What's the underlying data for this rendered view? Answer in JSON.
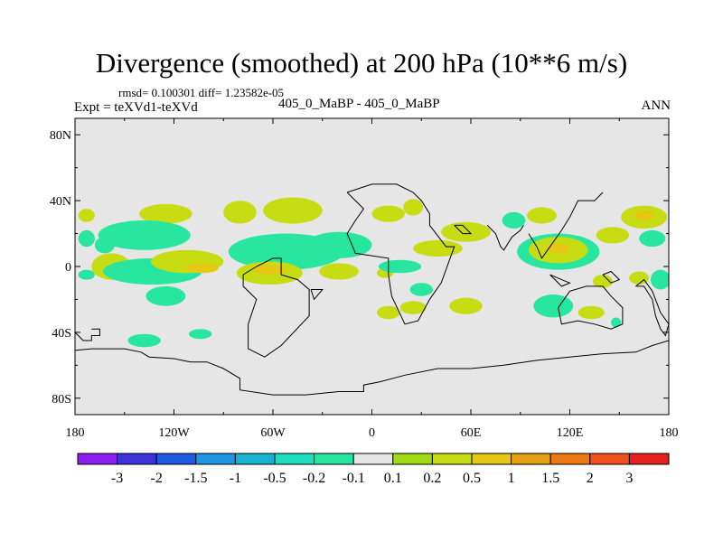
{
  "title": "Divergence (smoothed) at 200 hPa (10**6 m/s)",
  "stats": "rmsd= 0.100301 diff= 1.23582e-05",
  "expt": "Expt = teXVd1-teXVd",
  "cases": "405_0_MaBP - 405_0_MaBP",
  "season": "ANN",
  "colors": {
    "background": "#e6e6e6",
    "level_colors": [
      "#8c1ef0",
      "#3c32dc",
      "#1e5ae6",
      "#1e96e6",
      "#14b4d2",
      "#1edcbe",
      "#28e6a0",
      "#e6e6e6",
      "#a0dc14",
      "#c8dc14",
      "#e6c814",
      "#e6a014",
      "#f07814",
      "#f0501e",
      "#e61e1e"
    ]
  },
  "chart_data": {
    "type": "contour-map",
    "title": "Divergence (smoothed) at 200 hPa (10**6 m/s)",
    "units": "10**6 m/s",
    "xlim": [
      -180,
      180
    ],
    "ylim": [
      -90,
      90
    ],
    "x_ticks": [
      {
        "value": -180,
        "label": "180"
      },
      {
        "value": -120,
        "label": "120W"
      },
      {
        "value": -60,
        "label": "60W"
      },
      {
        "value": 0,
        "label": "0"
      },
      {
        "value": 60,
        "label": "60E"
      },
      {
        "value": 120,
        "label": "120E"
      },
      {
        "value": 180,
        "label": "180"
      }
    ],
    "y_ticks": [
      {
        "value": 80,
        "label": "80N"
      },
      {
        "value": 40,
        "label": "40N"
      },
      {
        "value": 0,
        "label": "0"
      },
      {
        "value": -40,
        "label": "40S"
      },
      {
        "value": -80,
        "label": "80S"
      }
    ],
    "contour_levels": [
      "-3",
      "-2",
      "-1.5",
      "-1",
      "-0.5",
      "-0.2",
      "-0.1",
      "0.1",
      "0.2",
      "0.5",
      "1",
      "1.5",
      "2",
      "3"
    ],
    "regions": [
      {
        "level": 0.2,
        "lon": -173,
        "lat": 31,
        "rlon": 5,
        "rlat": 4
      },
      {
        "level": -0.2,
        "lon": -173,
        "lat": 17,
        "rlon": 5,
        "rlat": 5
      },
      {
        "level": -0.2,
        "lon": -173,
        "lat": -5,
        "rlon": 5,
        "rlat": 3
      },
      {
        "level": -0.2,
        "lon": -162,
        "lat": 13,
        "rlon": 6,
        "rlat": 5
      },
      {
        "level": 0.2,
        "lon": -125,
        "lat": 32,
        "rlon": 16,
        "rlat": 6
      },
      {
        "level": -0.2,
        "lon": -138,
        "lat": 19,
        "rlon": 28,
        "rlat": 9
      },
      {
        "level": 0.2,
        "lon": -158,
        "lat": 0,
        "rlon": 12,
        "rlat": 8
      },
      {
        "level": -0.2,
        "lon": -133,
        "lat": -3,
        "rlon": 30,
        "rlat": 8
      },
      {
        "level": 0.2,
        "lon": -112,
        "lat": 3,
        "rlon": 22,
        "rlat": 7
      },
      {
        "level": 0.5,
        "lon": -103,
        "lat": -1,
        "rlon": 10,
        "rlat": 3
      },
      {
        "level": 0.2,
        "lon": -80,
        "lat": 33,
        "rlon": 10,
        "rlat": 7
      },
      {
        "level": -0.2,
        "lon": -104,
        "lat": -41,
        "rlon": 7,
        "rlat": 3
      },
      {
        "level": -0.2,
        "lon": -138,
        "lat": -45,
        "rlon": 10,
        "rlat": 4
      },
      {
        "level": -0.2,
        "lon": -125,
        "lat": -18,
        "rlon": 12,
        "rlat": 6
      },
      {
        "level": 0.2,
        "lon": -48,
        "lat": 34,
        "rlon": 18,
        "rlat": 8
      },
      {
        "level": -0.2,
        "lon": -52,
        "lat": 9,
        "rlon": 35,
        "rlat": 11
      },
      {
        "level": -0.2,
        "lon": -20,
        "lat": 13,
        "rlon": 20,
        "rlat": 8
      },
      {
        "level": 0.2,
        "lon": -62,
        "lat": -4,
        "rlon": 20,
        "rlat": 7
      },
      {
        "level": 0.5,
        "lon": -62,
        "lat": -2,
        "rlon": 10,
        "rlat": 3
      },
      {
        "level": 0.2,
        "lon": -20,
        "lat": -3,
        "rlon": 12,
        "rlat": 5
      },
      {
        "level": 0.2,
        "lon": 8,
        "lat": -4,
        "rlon": 5,
        "rlat": 3
      },
      {
        "level": 0.2,
        "lon": 10,
        "lat": 32,
        "rlon": 10,
        "rlat": 5
      },
      {
        "level": 0.2,
        "lon": 25,
        "lat": 36,
        "rlon": 6,
        "rlat": 5
      },
      {
        "level": -0.2,
        "lon": 17,
        "lat": 0,
        "rlon": 13,
        "rlat": 4
      },
      {
        "level": 0.2,
        "lon": 10,
        "lat": -28,
        "rlon": 7,
        "rlat": 4
      },
      {
        "level": 0.2,
        "lon": 25,
        "lat": -25,
        "rlon": 8,
        "rlat": 4
      },
      {
        "level": -0.2,
        "lon": 30,
        "lat": -14,
        "rlon": 7,
        "rlat": 4
      },
      {
        "level": 0.2,
        "lon": 40,
        "lat": 11,
        "rlon": 15,
        "rlat": 5
      },
      {
        "level": 0.2,
        "lon": 57,
        "lat": 21,
        "rlon": 15,
        "rlat": 6
      },
      {
        "level": 0.2,
        "lon": 57,
        "lat": -24,
        "rlon": 10,
        "rlat": 5
      },
      {
        "level": -0.2,
        "lon": 86,
        "lat": 28,
        "rlon": 7,
        "rlat": 5
      },
      {
        "level": 0.2,
        "lon": 103,
        "lat": 31,
        "rlon": 9,
        "rlat": 5
      },
      {
        "level": -0.2,
        "lon": 113,
        "lat": 9,
        "rlon": 25,
        "rlat": 11
      },
      {
        "level": 0.2,
        "lon": 113,
        "lat": 10,
        "rlon": 18,
        "rlat": 8
      },
      {
        "level": 0.5,
        "lon": 113,
        "lat": 11,
        "rlon": 7,
        "rlat": 3
      },
      {
        "level": 0.2,
        "lon": 146,
        "lat": 19,
        "rlon": 10,
        "rlat": 5
      },
      {
        "level": 0.2,
        "lon": 165,
        "lat": 30,
        "rlon": 14,
        "rlat": 7
      },
      {
        "level": 0.5,
        "lon": 165,
        "lat": 31,
        "rlon": 6,
        "rlat": 3
      },
      {
        "level": -0.2,
        "lon": 170,
        "lat": 17,
        "rlon": 8,
        "rlat": 5
      },
      {
        "level": -0.2,
        "lon": 110,
        "lat": -24,
        "rlon": 12,
        "rlat": 7
      },
      {
        "level": 0.2,
        "lon": 140,
        "lat": -9,
        "rlon": 6,
        "rlat": 4
      },
      {
        "level": -0.2,
        "lon": 148,
        "lat": -34,
        "rlon": 3,
        "rlat": 3
      },
      {
        "level": 0.2,
        "lon": 133,
        "lat": -28,
        "rlon": 8,
        "rlat": 4
      },
      {
        "level": -0.2,
        "lon": 175,
        "lat": -8,
        "rlon": 6,
        "rlat": 6
      },
      {
        "level": 0.2,
        "lon": 162,
        "lat": -7,
        "rlon": 6,
        "rlat": 4
      }
    ],
    "coastlines": [
      [
        [
          -170,
          -38
        ],
        [
          -165,
          -38
        ],
        [
          -165,
          -42
        ],
        [
          -170,
          -42
        ],
        [
          -170,
          -45
        ],
        [
          -175,
          -45
        ],
        [
          -178,
          -42
        ],
        [
          -180,
          -40
        ]
      ],
      [
        [
          -180,
          -51
        ],
        [
          -170,
          -50
        ],
        [
          -160,
          -50
        ],
        [
          -150,
          -50
        ],
        [
          -140,
          -52
        ],
        [
          -135,
          -55
        ],
        [
          -120,
          -56
        ],
        [
          -110,
          -58
        ],
        [
          -100,
          -58
        ],
        [
          -90,
          -62
        ],
        [
          -80,
          -68
        ],
        [
          -80,
          -75
        ],
        [
          -60,
          -78
        ],
        [
          -40,
          -78
        ],
        [
          -20,
          -76
        ],
        [
          -5,
          -76
        ],
        [
          -5,
          -72
        ],
        [
          5,
          -70
        ],
        [
          20,
          -66
        ],
        [
          40,
          -62
        ],
        [
          60,
          -62
        ],
        [
          80,
          -60
        ],
        [
          100,
          -57
        ],
        [
          120,
          -55
        ],
        [
          140,
          -53
        ],
        [
          160,
          -52
        ],
        [
          170,
          -48
        ],
        [
          180,
          -45
        ]
      ],
      [
        [
          -55,
          -5
        ],
        [
          -45,
          -8
        ],
        [
          -38,
          -14
        ],
        [
          -38,
          -30
        ],
        [
          -55,
          -48
        ],
        [
          -65,
          -55
        ],
        [
          -75,
          -50
        ],
        [
          -75,
          -35
        ],
        [
          -70,
          -20
        ],
        [
          -78,
          -12
        ],
        [
          -78,
          -5
        ],
        [
          -70,
          0
        ],
        [
          -60,
          5
        ],
        [
          -55,
          5
        ],
        [
          -55,
          -5
        ]
      ],
      [
        [
          -37,
          -14
        ],
        [
          -35,
          -20
        ],
        [
          -30,
          -14
        ],
        [
          -37,
          -14
        ]
      ],
      [
        [
          -15,
          45
        ],
        [
          -10,
          40
        ],
        [
          -5,
          35
        ],
        [
          -10,
          28
        ],
        [
          -15,
          20
        ],
        [
          -10,
          8
        ],
        [
          10,
          5
        ],
        [
          10,
          -5
        ],
        [
          12,
          -18
        ],
        [
          20,
          -35
        ],
        [
          28,
          -33
        ],
        [
          35,
          -20
        ],
        [
          42,
          -10
        ],
        [
          50,
          12
        ],
        [
          45,
          12
        ],
        [
          35,
          25
        ],
        [
          35,
          32
        ],
        [
          30,
          40
        ],
        [
          25,
          45
        ],
        [
          15,
          50
        ],
        [
          0,
          50
        ],
        [
          -15,
          45
        ]
      ],
      [
        [
          50,
          25
        ],
        [
          55,
          20
        ],
        [
          60,
          20
        ],
        [
          55,
          25
        ],
        [
          50,
          25
        ]
      ],
      [
        [
          70,
          25
        ],
        [
          75,
          20
        ],
        [
          78,
          12
        ],
        [
          80,
          10
        ],
        [
          85,
          18
        ],
        [
          90,
          22
        ],
        [
          92,
          25
        ]
      ],
      [
        [
          95,
          20
        ],
        [
          100,
          12
        ],
        [
          103,
          5
        ],
        [
          108,
          12
        ],
        [
          115,
          22
        ],
        [
          120,
          30
        ],
        [
          125,
          40
        ],
        [
          135,
          40
        ],
        [
          140,
          45
        ]
      ],
      [
        [
          108,
          -5
        ],
        [
          115,
          -8
        ],
        [
          120,
          -10
        ],
        [
          115,
          -12
        ],
        [
          108,
          -5
        ]
      ],
      [
        [
          120,
          -15
        ],
        [
          130,
          -12
        ],
        [
          140,
          -12
        ],
        [
          145,
          -18
        ],
        [
          152,
          -25
        ],
        [
          152,
          -35
        ],
        [
          145,
          -38
        ],
        [
          135,
          -35
        ],
        [
          125,
          -33
        ],
        [
          115,
          -35
        ],
        [
          113,
          -25
        ],
        [
          120,
          -15
        ]
      ],
      [
        [
          140,
          -5
        ],
        [
          145,
          -3
        ],
        [
          150,
          -8
        ],
        [
          145,
          -10
        ],
        [
          140,
          -5
        ]
      ],
      [
        [
          160,
          -12
        ],
        [
          165,
          -12
        ],
        [
          170,
          -20
        ],
        [
          172,
          -30
        ],
        [
          175,
          -38
        ],
        [
          178,
          -42
        ],
        [
          180,
          -35
        ],
        [
          175,
          -28
        ],
        [
          170,
          -15
        ],
        [
          165,
          -8
        ],
        [
          160,
          -12
        ]
      ]
    ]
  }
}
